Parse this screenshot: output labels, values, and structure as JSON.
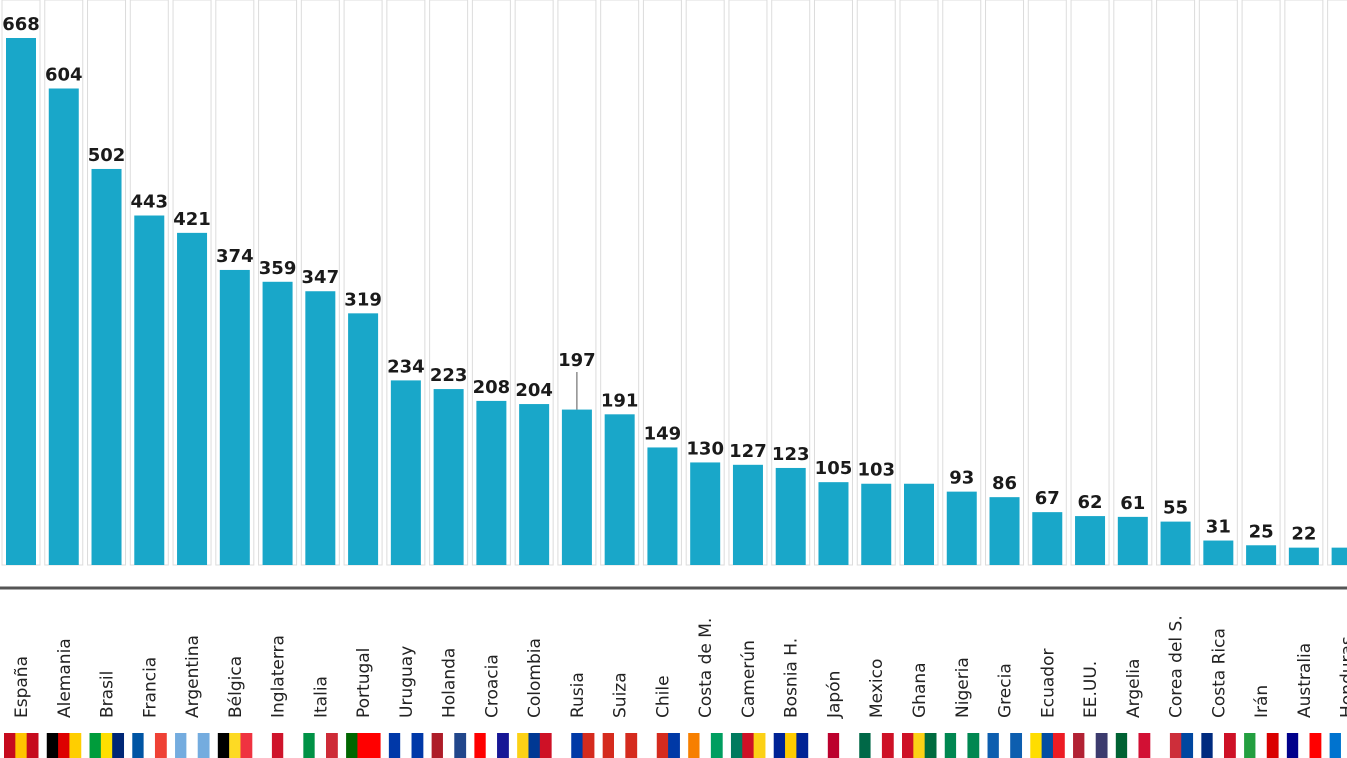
{
  "chart_data": {
    "type": "bar",
    "title": "",
    "xlabel": "",
    "ylabel": "",
    "ylim": [
      0,
      668
    ],
    "grid": true,
    "categories": [
      "España",
      "Alemania",
      "Brasil",
      "Francia",
      "Argentina",
      "Bélgica",
      "Inglaterra",
      "Italia",
      "Portugal",
      "Uruguay",
      "Holanda",
      "Croacia",
      "Colombia",
      "Rusia",
      "Suiza",
      "Chile",
      "Costa de M.",
      "Camerún",
      "Bosnia H.",
      "Japón",
      "Mexico",
      "Ghana",
      "Nigeria",
      "Grecia",
      "Ecuador",
      "EE.UU.",
      "Argelia",
      "Corea del S.",
      "Costa Rica",
      "Irán",
      "Australia",
      "Honduras"
    ],
    "values": [
      668,
      604,
      502,
      443,
      421,
      374,
      359,
      347,
      319,
      234,
      223,
      208,
      204,
      197,
      191,
      149,
      130,
      127,
      123,
      105,
      103,
      103,
      93,
      86,
      67,
      62,
      61,
      55,
      31,
      25,
      22,
      22
    ],
    "value_labels": [
      "668",
      "604",
      "502",
      "443",
      "421",
      "374",
      "359",
      "347",
      "319",
      "234",
      "223",
      "208",
      "204",
      "197",
      "191",
      "149",
      "130",
      "127",
      "123",
      "105",
      "103",
      "",
      "93",
      "86",
      "67",
      "62",
      "61",
      "55",
      "31",
      "25",
      "22",
      ""
    ],
    "bar_color": "#19a7c9",
    "flag_colors": [
      [
        "#c60b1e",
        "#ffc400",
        "#c60b1e"
      ],
      [
        "#000000",
        "#dd0000",
        "#ffce00"
      ],
      [
        "#009c3b",
        "#ffdf00",
        "#002776"
      ],
      [
        "#0055a4",
        "#ffffff",
        "#ef4135"
      ],
      [
        "#74acdf",
        "#ffffff",
        "#74acdf"
      ],
      [
        "#000000",
        "#fdda24",
        "#ef3340"
      ],
      [
        "#ffffff",
        "#cf142b",
        "#ffffff"
      ],
      [
        "#009246",
        "#ffffff",
        "#ce2b37"
      ],
      [
        "#006600",
        "#ff0000",
        "#ff0000"
      ],
      [
        "#0038a8",
        "#ffffff",
        "#0038a8"
      ],
      [
        "#ae1c28",
        "#ffffff",
        "#21468b"
      ],
      [
        "#ff0000",
        "#ffffff",
        "#171796"
      ],
      [
        "#fcd116",
        "#003893",
        "#ce1126"
      ],
      [
        "#ffffff",
        "#0039a6",
        "#d52b1e"
      ],
      [
        "#d52b1e",
        "#ffffff",
        "#d52b1e"
      ],
      [
        "#ffffff",
        "#d52b1e",
        "#0039a6"
      ],
      [
        "#f77f00",
        "#ffffff",
        "#009e60"
      ],
      [
        "#007a5e",
        "#ce1126",
        "#fcd116"
      ],
      [
        "#002395",
        "#fecb00",
        "#002395"
      ],
      [
        "#ffffff",
        "#bc002d",
        "#ffffff"
      ],
      [
        "#006847",
        "#ffffff",
        "#ce1126"
      ],
      [
        "#ce1126",
        "#fcd116",
        "#006b3f"
      ],
      [
        "#008751",
        "#ffffff",
        "#008751"
      ],
      [
        "#0d5eaf",
        "#ffffff",
        "#0d5eaf"
      ],
      [
        "#ffdd00",
        "#034ea2",
        "#ed1c24"
      ],
      [
        "#b22234",
        "#ffffff",
        "#3c3b6e"
      ],
      [
        "#006233",
        "#ffffff",
        "#d21034"
      ],
      [
        "#ffffff",
        "#cd2e3a",
        "#0047a0"
      ],
      [
        "#002b7f",
        "#ffffff",
        "#ce1126"
      ],
      [
        "#239f40",
        "#ffffff",
        "#da0000"
      ],
      [
        "#00008b",
        "#ffffff",
        "#ff0000"
      ],
      [
        "#0073cf",
        "#ffffff",
        "#0073cf"
      ]
    ]
  }
}
